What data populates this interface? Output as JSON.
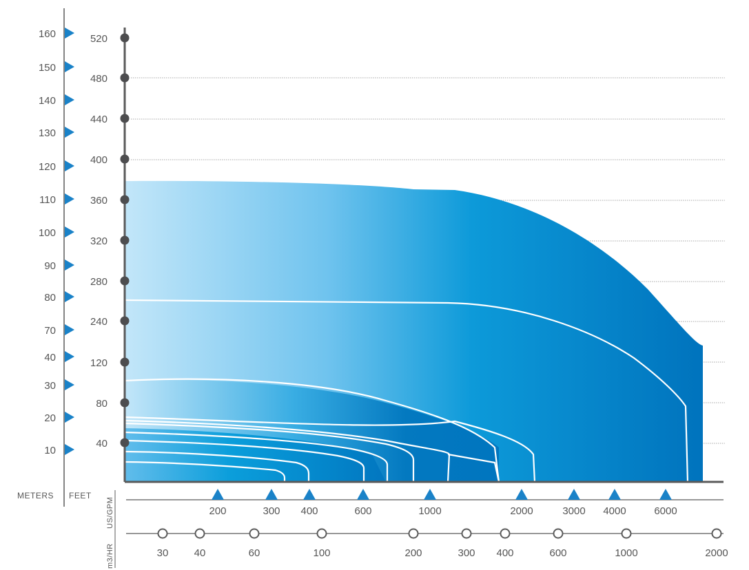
{
  "chart_data": {
    "type": "area",
    "title": "",
    "axes": {
      "meters": {
        "label": "METERS",
        "ticks": [
          "160",
          "150",
          "140",
          "130",
          "120",
          "110",
          "100",
          "90",
          "80",
          "70",
          "40",
          "30",
          "20",
          "10"
        ]
      },
      "feet": {
        "label": "FEET",
        "ticks": [
          "520",
          "480",
          "440",
          "400",
          "360",
          "320",
          "280",
          "240",
          "120",
          "80",
          "40"
        ]
      },
      "us_gpm": {
        "label": "US/GPM",
        "ticks": [
          "200",
          "300",
          "400",
          "600",
          "1000",
          "2000",
          "3000",
          "4000",
          "6000"
        ]
      },
      "m3_hr": {
        "label": "m3/HR",
        "ticks": [
          "30",
          "40",
          "60",
          "100",
          "200",
          "300",
          "400",
          "600",
          "1000",
          "2000"
        ]
      }
    },
    "envelope": {
      "description_values": "head in feet vs flow in US/GPM",
      "max_shutoff_head_ft": 365,
      "max_flow_gpm": 8000,
      "head_at_max_flow_ft": 170
    },
    "curves": [
      {
        "shutoff_head_ft": 265,
        "max_flow_gpm": 7500
      },
      {
        "shutoff_head_ft": 98,
        "max_flow_gpm": 2600
      },
      {
        "shutoff_head_ft": 62,
        "max_flow_gpm": 1950
      },
      {
        "shutoff_head_ft": 57,
        "max_flow_gpm": 1200
      },
      {
        "shutoff_head_ft": 47,
        "max_flow_gpm": 900
      },
      {
        "shutoff_head_ft": 38,
        "max_flow_gpm": 730
      },
      {
        "shutoff_head_ft": 28,
        "max_flow_gpm": 600
      },
      {
        "shutoff_head_ft": 17,
        "max_flow_gpm": 420
      },
      {
        "shutoff_head_ft": 10,
        "max_flow_gpm": 320
      }
    ],
    "colors": {
      "fill_light": "#b7e2f8",
      "fill_mid": "#4bb6e8",
      "fill_dark": "#0079c1",
      "marker_blue": "#1a82c8",
      "dot": "#4d4d4f",
      "axis": "#5a5a5a"
    },
    "grid": true
  }
}
